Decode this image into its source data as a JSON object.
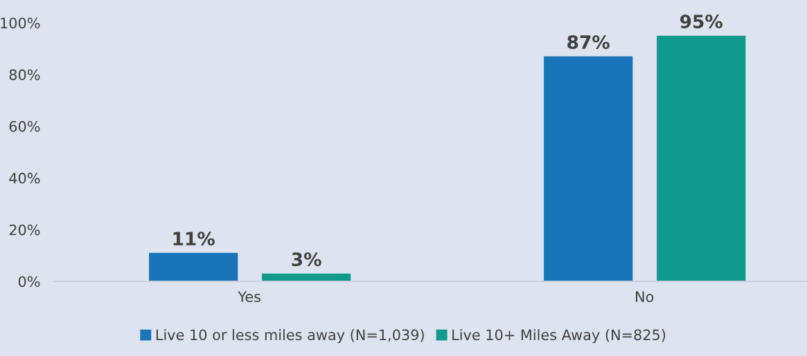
{
  "chart_data": {
    "type": "bar",
    "categories": [
      "Yes",
      "No"
    ],
    "series": [
      {
        "name": "Live 10 or less miles away (N=1,039)",
        "color": "#1a75b8",
        "values": [
          11,
          87
        ]
      },
      {
        "name": "Live 10+ Miles Away (N=825)",
        "color": "#11998e",
        "values": [
          3,
          95
        ]
      }
    ],
    "ylim": [
      0,
      100
    ],
    "yticks": [
      {
        "value": 0,
        "label": "0%"
      },
      {
        "value": 20,
        "label": "20%"
      },
      {
        "value": 40,
        "label": "40%"
      },
      {
        "value": 60,
        "label": "60%"
      },
      {
        "value": 80,
        "label": "80%"
      },
      {
        "value": 100,
        "label": "100%"
      }
    ],
    "value_labels": [
      [
        "11%",
        "87%"
      ],
      [
        "3%",
        "95%"
      ]
    ],
    "grid": false,
    "legend": "bottom"
  }
}
